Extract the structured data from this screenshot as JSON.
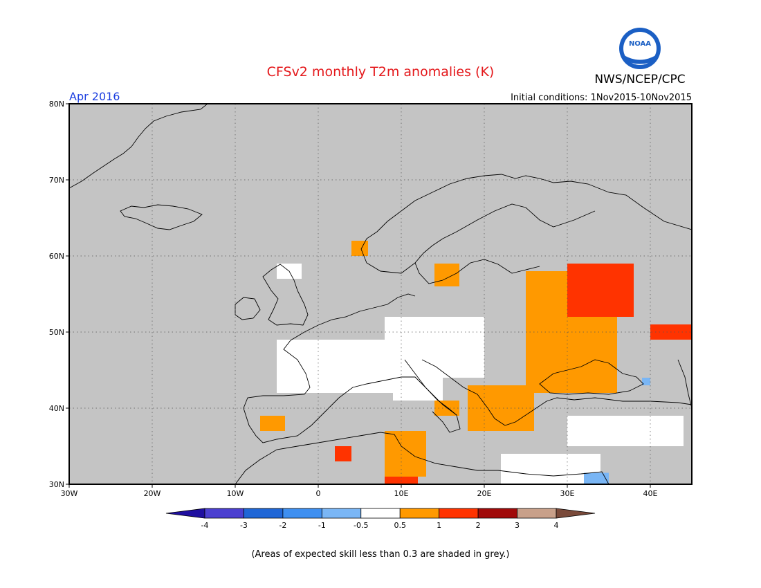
{
  "header": {
    "title": "CFSv2 monthly T2m anomalies (K)",
    "agency": "NWS/NCEP/CPC",
    "logo_text": "NOAA",
    "valid_month": "Apr 2016",
    "initial_conditions": "Initial conditions: 1Nov2015-10Nov2015"
  },
  "colors": {
    "title": "#e4191c",
    "month": "#1c3fe0",
    "land_no_skill": "#c4c4c4",
    "ocean": "#c4c4c4",
    "coast": "#000000",
    "grid": "#555555"
  },
  "map": {
    "projection": "cylindrical-equidistant",
    "lon_range": [
      -30,
      45
    ],
    "lat_range": [
      30,
      80
    ],
    "lon_ticks": [
      {
        "value": -30,
        "label": "30W"
      },
      {
        "value": -20,
        "label": "20W"
      },
      {
        "value": -10,
        "label": "10W"
      },
      {
        "value": 0,
        "label": "0"
      },
      {
        "value": 10,
        "label": "10E"
      },
      {
        "value": 20,
        "label": "20E"
      },
      {
        "value": 30,
        "label": "30E"
      },
      {
        "value": 40,
        "label": "40E"
      }
    ],
    "lat_ticks": [
      {
        "value": 30,
        "label": "30N"
      },
      {
        "value": 40,
        "label": "40N"
      },
      {
        "value": 50,
        "label": "50N"
      },
      {
        "value": 60,
        "label": "60N"
      },
      {
        "value": 70,
        "label": "70N"
      },
      {
        "value": 80,
        "label": "80N"
      }
    ],
    "grid": "dotted",
    "anomaly_regions": [
      {
        "class": "near-normal",
        "color": "#ffffff",
        "lat": [
          42,
          49
        ],
        "lon": [
          -5,
          12
        ]
      },
      {
        "class": "near-normal",
        "color": "#ffffff",
        "lat": [
          44,
          52
        ],
        "lon": [
          8,
          20
        ]
      },
      {
        "class": "near-normal",
        "color": "#ffffff",
        "lat": [
          41,
          45
        ],
        "lon": [
          9,
          15
        ]
      },
      {
        "class": "near-normal",
        "color": "#ffffff",
        "lat": [
          35,
          39
        ],
        "lon": [
          30,
          44
        ]
      },
      {
        "class": "near-normal",
        "color": "#ffffff",
        "lat": [
          30,
          34
        ],
        "lon": [
          22,
          34
        ]
      },
      {
        "class": "near-normal",
        "color": "#ffffff",
        "lat": [
          57,
          59
        ],
        "lon": [
          -5,
          -2
        ]
      },
      {
        "class": "above-0.5",
        "color": "#ff9900",
        "lat": [
          42,
          58
        ],
        "lon": [
          25,
          36
        ]
      },
      {
        "class": "above-0.5",
        "color": "#ff9900",
        "lat": [
          37,
          43
        ],
        "lon": [
          18,
          26
        ]
      },
      {
        "class": "above-0.5",
        "color": "#ff9900",
        "lat": [
          31,
          37
        ],
        "lon": [
          8,
          13
        ]
      },
      {
        "class": "above-0.5",
        "color": "#ff9900",
        "lat": [
          37,
          39
        ],
        "lon": [
          -7,
          -4
        ]
      },
      {
        "class": "above-0.5",
        "color": "#ff9900",
        "lat": [
          56,
          59
        ],
        "lon": [
          14,
          17
        ]
      },
      {
        "class": "above-0.5",
        "color": "#ff9900",
        "lat": [
          60,
          62
        ],
        "lon": [
          4,
          6
        ]
      },
      {
        "class": "above-0.5",
        "color": "#ff9900",
        "lat": [
          39,
          41
        ],
        "lon": [
          14,
          17
        ]
      },
      {
        "class": "above-1",
        "color": "#ff3300",
        "lat": [
          52,
          59
        ],
        "lon": [
          30,
          38
        ]
      },
      {
        "class": "above-1",
        "color": "#ff3300",
        "lat": [
          49,
          51
        ],
        "lon": [
          40,
          45
        ]
      },
      {
        "class": "above-1",
        "color": "#ff3300",
        "lat": [
          30,
          31
        ],
        "lon": [
          8,
          12
        ]
      },
      {
        "class": "above-1",
        "color": "#ff3300",
        "lat": [
          33,
          35
        ],
        "lon": [
          2,
          4
        ]
      },
      {
        "class": "below-0.5",
        "color": "#7ab6f5",
        "lat": [
          30,
          31.5
        ],
        "lon": [
          32,
          35
        ]
      },
      {
        "class": "below-0.5",
        "color": "#7ab6f5",
        "lat": [
          43,
          44
        ],
        "lon": [
          39,
          40
        ]
      }
    ]
  },
  "colorbar": {
    "labels": [
      "-4",
      "-3",
      "-2",
      "-1",
      "-0.5",
      "0.5",
      "1",
      "2",
      "3",
      "4"
    ],
    "colors": [
      "#1f0fa0",
      "#4b3fd0",
      "#1f66d6",
      "#3e8ff0",
      "#7ab6f5",
      "#ffffff",
      "#ff9900",
      "#ff3300",
      "#a00a0a",
      "#c8a08a",
      "#7a4a3a"
    ]
  },
  "footnote": "(Areas of expected skill less than 0.3 are shaded in grey.)"
}
